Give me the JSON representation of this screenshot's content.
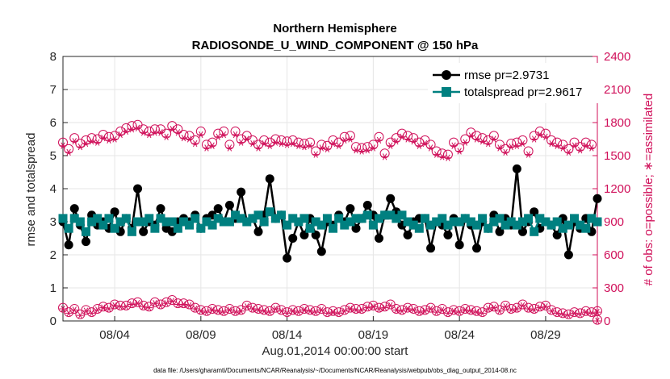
{
  "chart_data": {
    "type": "line",
    "title": "Northern Hemisphere",
    "subtitle": "RADIOSONDE_U_WIND_COMPONENT @ 150 hPa",
    "xlabel": "Aug.01,2014 00:00:00 start",
    "ylabel_left": "rmse and totalspread",
    "ylabel_right": "# of obs: o=possible; ∗=assimilated",
    "footnote": "data file: /Users/gharamti/Documents/NCAR/Reanalysis/~/Documents/NCAR/Reanalysis/webpub/obs_diag_output_2014-08.nc",
    "xlim": [
      1,
      32
    ],
    "x_ticks": [
      4,
      9,
      14,
      19,
      24,
      29
    ],
    "x_tick_labels": [
      "08/04",
      "08/09",
      "08/14",
      "08/19",
      "08/24",
      "08/29"
    ],
    "ylim_left": [
      0,
      8
    ],
    "y_ticks_left": [
      "0",
      "1",
      "2",
      "3",
      "4",
      "5",
      "6",
      "7",
      "8"
    ],
    "ylim_right": [
      0,
      2400
    ],
    "y_ticks_right": [
      "0",
      "300",
      "600",
      "900",
      "1200",
      "1500",
      "1800",
      "2100",
      "2400"
    ],
    "grid": true,
    "legend_position": "top-right",
    "series": [
      {
        "name": "rmse",
        "legend_label": "rmse pr=2.9731",
        "color": "#000000",
        "marker": "circle",
        "axis": "left",
        "values": [
          3.0,
          2.3,
          3.4,
          2.9,
          2.4,
          3.2,
          2.9,
          3.0,
          2.8,
          3.3,
          2.7,
          3.1,
          2.8,
          4.0,
          2.7,
          3.0,
          2.9,
          3.4,
          2.8,
          2.7,
          3.0,
          3.1,
          3.0,
          3.2,
          2.8,
          3.1,
          3.2,
          3.4,
          3.0,
          3.5,
          3.1,
          3.9,
          3.0,
          3.1,
          2.7,
          3.2,
          4.3,
          3.1,
          3.2,
          1.9,
          2.5,
          3.0,
          2.6,
          3.1,
          2.6,
          2.1,
          3.0,
          2.9,
          3.2,
          3.0,
          3.4,
          2.8,
          3.1,
          3.5,
          3.2,
          2.5,
          3.2,
          3.7,
          3.3,
          2.9,
          2.6,
          3.0,
          3.1,
          3.1,
          2.2,
          3.0,
          2.9,
          2.6,
          3.1,
          2.3,
          3.1,
          2.9,
          2.2,
          3.0,
          2.8,
          3.2,
          2.7,
          3.1,
          2.9,
          4.6,
          2.7,
          3.0,
          3.3,
          2.8,
          3.0,
          2.9,
          2.6,
          3.1,
          2.0,
          3.0,
          2.8,
          3.1,
          2.7,
          3.7
        ]
      },
      {
        "name": "totalspread",
        "legend_label": "totalspread pr=2.9617",
        "color": "#008080",
        "marker": "square",
        "axis": "left",
        "values": [
          3.1,
          2.8,
          3.1,
          3.0,
          2.7,
          3.0,
          3.1,
          2.9,
          3.1,
          2.8,
          3.0,
          3.1,
          2.7,
          3.0,
          3.0,
          3.1,
          2.8,
          3.1,
          3.0,
          3.0,
          2.8,
          3.0,
          2.9,
          3.1,
          2.8,
          3.0,
          2.9,
          3.1,
          3.0,
          3.0,
          3.2,
          3.1,
          3.0,
          3.1,
          3.2,
          3.0,
          3.3,
          3.1,
          3.2,
          2.9,
          3.1,
          3.0,
          3.1,
          2.8,
          3.0,
          2.9,
          3.1,
          2.8,
          3.1,
          2.9,
          3.0,
          3.1,
          3.1,
          3.2,
          2.9,
          3.1,
          3.2,
          3.2,
          3.1,
          3.2,
          3.0,
          2.9,
          2.8,
          3.1,
          2.9,
          3.0,
          3.1,
          2.9,
          3.0,
          3.0,
          3.1,
          3.0,
          2.9,
          3.1,
          2.8,
          3.0,
          3.1,
          2.9,
          3.0,
          2.9,
          3.0,
          3.1,
          2.7,
          3.1,
          3.0,
          2.9,
          3.0,
          2.8,
          2.9,
          3.1,
          2.9,
          2.8,
          3.1,
          3.0
        ]
      },
      {
        "name": "obs possible",
        "color": "#d0105a",
        "marker": "open-circle",
        "axis": "right",
        "values": [
          1620,
          1560,
          1660,
          1610,
          1640,
          1660,
          1650,
          1690,
          1670,
          1680,
          1720,
          1750,
          1770,
          1780,
          1740,
          1720,
          1740,
          1740,
          1700,
          1770,
          1740,
          1690,
          1680,
          1640,
          1720,
          1600,
          1620,
          1700,
          1720,
          1600,
          1720,
          1650,
          1680,
          1640,
          1600,
          1640,
          1620,
          1650,
          1640,
          1630,
          1640,
          1620,
          1610,
          1620,
          1540,
          1600,
          1590,
          1640,
          1620,
          1670,
          1680,
          1580,
          1570,
          1580,
          1600,
          1670,
          1520,
          1620,
          1660,
          1700,
          1680,
          1660,
          1620,
          1640,
          1600,
          1540,
          1520,
          1510,
          1620,
          1570,
          1650,
          1710,
          1680,
          1660,
          1640,
          1680,
          1600,
          1560,
          1610,
          1620,
          1640,
          1540,
          1680,
          1720,
          1700,
          1640,
          1620,
          1600,
          1560,
          1620,
          1580,
          1620,
          1600,
          10
        ],
        "assimilated": [
          1590,
          1530,
          1630,
          1580,
          1610,
          1630,
          1620,
          1660,
          1640,
          1650,
          1690,
          1720,
          1740,
          1750,
          1710,
          1690,
          1710,
          1710,
          1670,
          1740,
          1710,
          1660,
          1650,
          1610,
          1690,
          1570,
          1590,
          1670,
          1690,
          1570,
          1690,
          1620,
          1650,
          1610,
          1570,
          1610,
          1590,
          1620,
          1610,
          1600,
          1610,
          1590,
          1580,
          1590,
          1510,
          1570,
          1560,
          1610,
          1590,
          1640,
          1650,
          1550,
          1540,
          1550,
          1570,
          1640,
          1490,
          1590,
          1630,
          1670,
          1650,
          1630,
          1590,
          1610,
          1570,
          1510,
          1490,
          1480,
          1590,
          1540,
          1620,
          1680,
          1650,
          1630,
          1610,
          1650,
          1570,
          1530,
          1580,
          1590,
          1610,
          1510,
          1650,
          1690,
          1670,
          1610,
          1590,
          1570,
          1530,
          1590,
          1550,
          1590,
          1570,
          0
        ]
      },
      {
        "name": "obs possible (second set)",
        "color": "#d0105a",
        "marker": "open-circle",
        "axis": "right",
        "values": [
          120,
          80,
          110,
          60,
          100,
          80,
          110,
          130,
          120,
          150,
          140,
          140,
          160,
          170,
          140,
          130,
          170,
          150,
          170,
          190,
          160,
          160,
          150,
          120,
          100,
          90,
          110,
          100,
          90,
          110,
          90,
          100,
          140,
          120,
          110,
          100,
          90,
          120,
          100,
          80,
          100,
          90,
          110,
          100,
          90,
          110,
          80,
          90,
          80,
          100,
          120,
          110,
          110,
          130,
          140,
          120,
          130,
          150,
          110,
          100,
          120,
          110,
          90,
          100,
          120,
          90,
          110,
          80,
          100,
          90,
          110,
          100,
          90,
          80,
          120,
          130,
          100,
          140,
          110,
          120,
          150,
          120,
          110,
          130,
          140,
          100,
          80,
          70,
          60,
          80,
          70,
          90,
          80,
          90
        ],
        "assimilated": [
          110,
          70,
          100,
          50,
          90,
          70,
          100,
          120,
          110,
          140,
          130,
          130,
          150,
          160,
          130,
          120,
          160,
          140,
          160,
          180,
          150,
          150,
          140,
          110,
          90,
          80,
          100,
          90,
          80,
          100,
          80,
          90,
          130,
          110,
          100,
          90,
          80,
          110,
          90,
          70,
          90,
          80,
          100,
          90,
          80,
          100,
          70,
          80,
          70,
          90,
          110,
          100,
          100,
          120,
          130,
          110,
          120,
          140,
          100,
          90,
          110,
          100,
          80,
          90,
          110,
          80,
          100,
          70,
          90,
          80,
          100,
          90,
          80,
          70,
          110,
          120,
          90,
          130,
          100,
          110,
          140,
          110,
          100,
          120,
          130,
          90,
          70,
          60,
          50,
          70,
          60,
          80,
          70,
          80
        ]
      }
    ]
  }
}
